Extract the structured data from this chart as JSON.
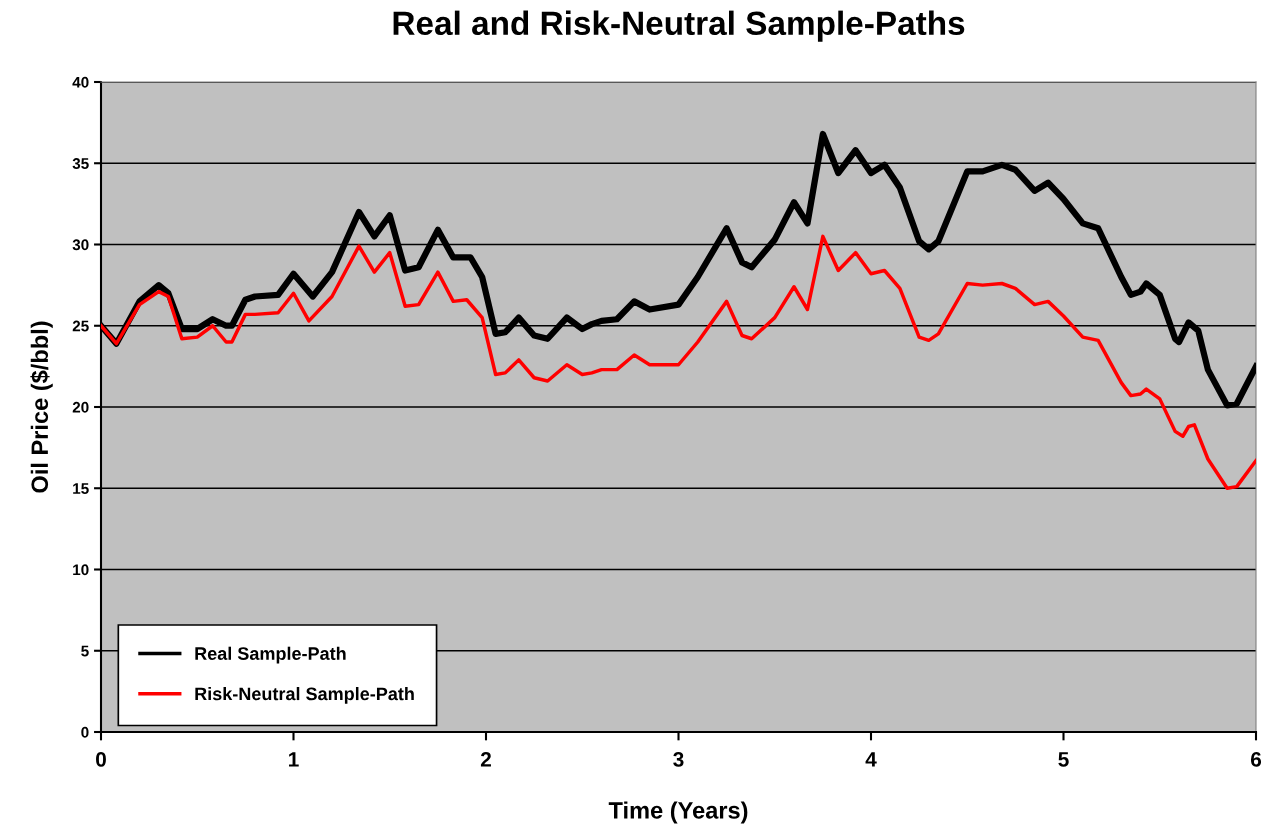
{
  "chart_data": {
    "type": "line",
    "title": "Real and Risk-Neutral Sample-Paths",
    "xlabel": "Time (Years)",
    "ylabel": "Oil Price ($/bbl)",
    "xlim": [
      0,
      6
    ],
    "xticks": [
      0,
      1,
      2,
      3,
      4,
      5,
      6
    ],
    "ylim": [
      0,
      40
    ],
    "yticks": [
      0,
      5,
      10,
      15,
      20,
      25,
      30,
      35,
      40
    ],
    "grid": "y",
    "legend": "bottom left",
    "marker": "none",
    "line_style": "solid",
    "series": [
      {
        "name": "Real Sample-Path",
        "color": "#000000",
        "x": [
          0,
          0.08,
          0.2,
          0.3,
          0.35,
          0.42,
          0.5,
          0.58,
          0.65,
          0.68,
          0.75,
          0.8,
          0.92,
          1.0,
          1.1,
          1.2,
          1.34,
          1.42,
          1.5,
          1.58,
          1.65,
          1.75,
          1.83,
          1.92,
          1.98,
          2.05,
          2.1,
          2.17,
          2.25,
          2.32,
          2.42,
          2.5,
          2.55,
          2.6,
          2.68,
          2.77,
          2.85,
          3.0,
          3.1,
          3.25,
          3.33,
          3.38,
          3.5,
          3.6,
          3.67,
          3.75,
          3.83,
          3.92,
          4.0,
          4.07,
          4.15,
          4.25,
          4.3,
          4.35,
          4.5,
          4.58,
          4.68,
          4.75,
          4.85,
          4.92,
          5.0,
          5.1,
          5.18,
          5.3,
          5.35,
          5.4,
          5.43,
          5.5,
          5.58,
          5.6,
          5.65,
          5.7,
          5.75,
          5.85,
          5.9,
          6.0
        ],
        "values": [
          25,
          23.9,
          26.5,
          27.5,
          27,
          24.8,
          24.8,
          25.4,
          25,
          25,
          26.6,
          26.8,
          26.9,
          28.2,
          26.8,
          28.3,
          32,
          30.5,
          31.8,
          28.4,
          28.6,
          30.9,
          29.2,
          29.2,
          28,
          24.5,
          24.6,
          25.5,
          24.4,
          24.2,
          25.5,
          24.8,
          25.1,
          25.3,
          25.4,
          26.5,
          26,
          26.3,
          28,
          31,
          28.9,
          28.6,
          30.3,
          32.6,
          31.3,
          36.8,
          34.4,
          35.8,
          34.4,
          34.9,
          33.5,
          30.2,
          29.7,
          30.2,
          34.5,
          34.5,
          34.9,
          34.6,
          33.3,
          33.8,
          32.8,
          31.3,
          31,
          28,
          26.9,
          27.1,
          27.6,
          26.9,
          24.2,
          24,
          25.2,
          24.7,
          22.3,
          20.1,
          20.2,
          22.5
        ]
      },
      {
        "name": "Risk-Neutral Sample-Path",
        "color": "#ff0000",
        "x": [
          0,
          0.08,
          0.2,
          0.3,
          0.35,
          0.42,
          0.5,
          0.58,
          0.65,
          0.68,
          0.75,
          0.8,
          0.92,
          1.0,
          1.08,
          1.2,
          1.34,
          1.42,
          1.5,
          1.58,
          1.65,
          1.75,
          1.83,
          1.9,
          1.98,
          2.05,
          2.1,
          2.17,
          2.25,
          2.32,
          2.42,
          2.5,
          2.55,
          2.6,
          2.68,
          2.77,
          2.85,
          3.0,
          3.1,
          3.25,
          3.33,
          3.38,
          3.5,
          3.6,
          3.67,
          3.75,
          3.83,
          3.92,
          4.0,
          4.07,
          4.15,
          4.25,
          4.3,
          4.35,
          4.5,
          4.58,
          4.68,
          4.75,
          4.85,
          4.92,
          5.0,
          5.1,
          5.18,
          5.3,
          5.35,
          5.4,
          5.43,
          5.5,
          5.58,
          5.62,
          5.65,
          5.68,
          5.75,
          5.85,
          5.9,
          6.0
        ],
        "values": [
          25,
          23.9,
          26.3,
          27.1,
          26.8,
          24.2,
          24.3,
          25,
          24,
          24,
          25.7,
          25.7,
          25.8,
          27,
          25.3,
          26.8,
          29.9,
          28.3,
          29.5,
          26.2,
          26.3,
          28.3,
          26.5,
          26.6,
          25.5,
          22,
          22.1,
          22.9,
          21.8,
          21.6,
          22.6,
          22,
          22.1,
          22.3,
          22.3,
          23.2,
          22.6,
          22.6,
          24,
          26.5,
          24.4,
          24.2,
          25.5,
          27.4,
          26,
          30.5,
          28.4,
          29.5,
          28.2,
          28.4,
          27.3,
          24.3,
          24.1,
          24.5,
          27.6,
          27.5,
          27.6,
          27.3,
          26.3,
          26.5,
          25.6,
          24.3,
          24.1,
          21.5,
          20.7,
          20.8,
          21.1,
          20.5,
          18.5,
          18.2,
          18.8,
          18.9,
          16.8,
          15.0,
          15.1,
          16.7
        ]
      }
    ]
  }
}
